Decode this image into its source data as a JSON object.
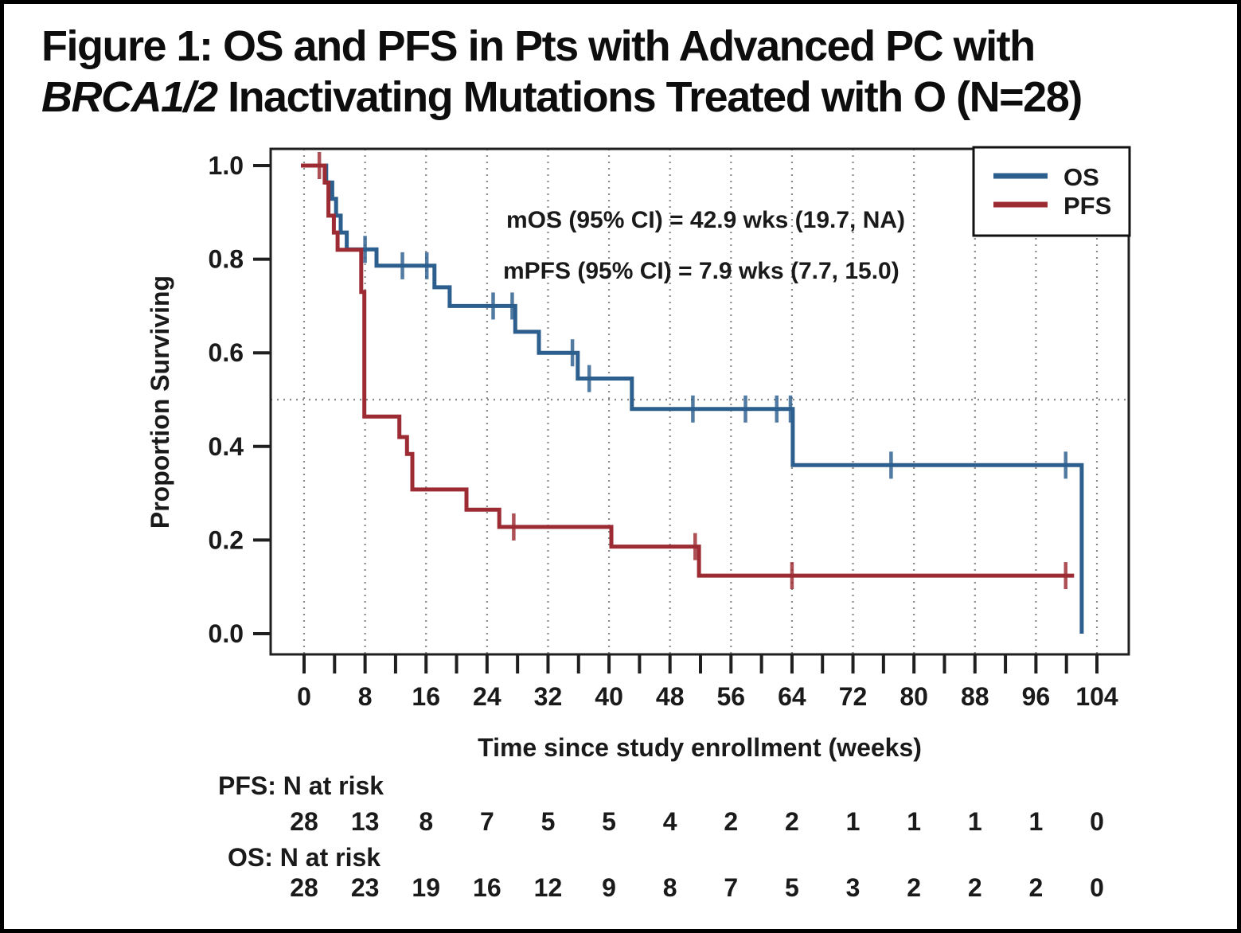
{
  "figure": {
    "title_line1": "Figure 1: OS and PFS in Pts with Advanced PC with",
    "title_line2_italic": "BRCA1/2",
    "title_line2_rest": " Inactivating Mutations Treated with O (N=28)"
  },
  "colors": {
    "os": "#2c5f8e",
    "pfs": "#9c2b33",
    "grid": "#8a8a8a",
    "axis": "#1f1f1f",
    "text": "#1a1a1a"
  },
  "chart_data": {
    "type": "line",
    "subtype": "kaplan-meier-step",
    "title": "",
    "xlabel": "Time since study enrollment (weeks)",
    "ylabel": "Proportion Surviving",
    "xlim": [
      -4.4,
      107.5
    ],
    "ylim": [
      0.0,
      1.0
    ],
    "x_tick_labels": [
      0,
      8,
      16,
      24,
      32,
      40,
      48,
      56,
      64,
      72,
      80,
      88,
      96,
      104
    ],
    "x_minor_tick_step": 4,
    "y_ticks": [
      1.0,
      0.8,
      0.6,
      0.4,
      0.2,
      0.0
    ],
    "grid": "dotted vertical gridlines at labeled x ticks",
    "reference_line_y": 0.5,
    "annotations": [
      "mOS (95% CI) = 42.9 wks (19.7, NA)",
      "mPFS (95% CI) = 7.9 wks (7.7, 15.0)"
    ],
    "legend": {
      "position": "top-right",
      "entries": [
        {
          "label": "OS",
          "color_key": "os"
        },
        {
          "label": "PFS",
          "color_key": "pfs"
        }
      ]
    },
    "series": [
      {
        "name": "OS",
        "color_key": "os",
        "steps": [
          [
            0,
            1.0
          ],
          [
            2.9,
            0.964
          ],
          [
            3.7,
            0.929
          ],
          [
            4.2,
            0.893
          ],
          [
            4.8,
            0.857
          ],
          [
            5.6,
            0.821
          ],
          [
            9.5,
            0.786
          ],
          [
            17.1,
            0.74
          ],
          [
            19.1,
            0.7
          ],
          [
            27.7,
            0.645
          ],
          [
            30.8,
            0.6
          ],
          [
            35.9,
            0.545
          ],
          [
            43,
            0.48
          ],
          [
            64.1,
            0.36
          ],
          [
            102,
            0.0
          ]
        ],
        "end_time": 102,
        "censors": [
          [
            8,
            0.821
          ],
          [
            12.9,
            0.786
          ],
          [
            16.1,
            0.786
          ],
          [
            24.8,
            0.7
          ],
          [
            27.3,
            0.7
          ],
          [
            35.2,
            0.6
          ],
          [
            37.4,
            0.545
          ],
          [
            51,
            0.48
          ],
          [
            57.9,
            0.48
          ],
          [
            62,
            0.48
          ],
          [
            63.8,
            0.48
          ],
          [
            77,
            0.36
          ],
          [
            99.9,
            0.36
          ]
        ]
      },
      {
        "name": "PFS",
        "color_key": "pfs",
        "steps": [
          [
            0,
            1.0
          ],
          [
            2.7,
            0.964
          ],
          [
            3.2,
            0.893
          ],
          [
            3.9,
            0.857
          ],
          [
            4.4,
            0.82
          ],
          [
            7.5,
            0.73
          ],
          [
            7.9,
            0.464
          ],
          [
            12.5,
            0.42
          ],
          [
            13.5,
            0.384
          ],
          [
            14.2,
            0.308
          ],
          [
            21.3,
            0.265
          ],
          [
            25.6,
            0.228
          ],
          [
            40.3,
            0.186
          ],
          [
            51.8,
            0.124
          ]
        ],
        "end_time": 101,
        "censors": [
          [
            2,
            1.0
          ],
          [
            27.5,
            0.228
          ],
          [
            51.3,
            0.186
          ],
          [
            64,
            0.124
          ],
          [
            99.9,
            0.124
          ]
        ]
      }
    ],
    "risk_table": {
      "weeks": [
        0,
        8,
        16,
        24,
        32,
        40,
        48,
        56,
        64,
        72,
        80,
        88,
        96,
        104
      ],
      "rows": [
        {
          "label": "PFS: N at risk",
          "values": [
            28,
            13,
            8,
            7,
            5,
            5,
            4,
            2,
            2,
            1,
            1,
            1,
            1,
            0
          ]
        },
        {
          "label": "OS: N at risk",
          "values": [
            28,
            23,
            19,
            16,
            12,
            9,
            8,
            7,
            5,
            3,
            2,
            2,
            2,
            0
          ]
        }
      ]
    }
  }
}
